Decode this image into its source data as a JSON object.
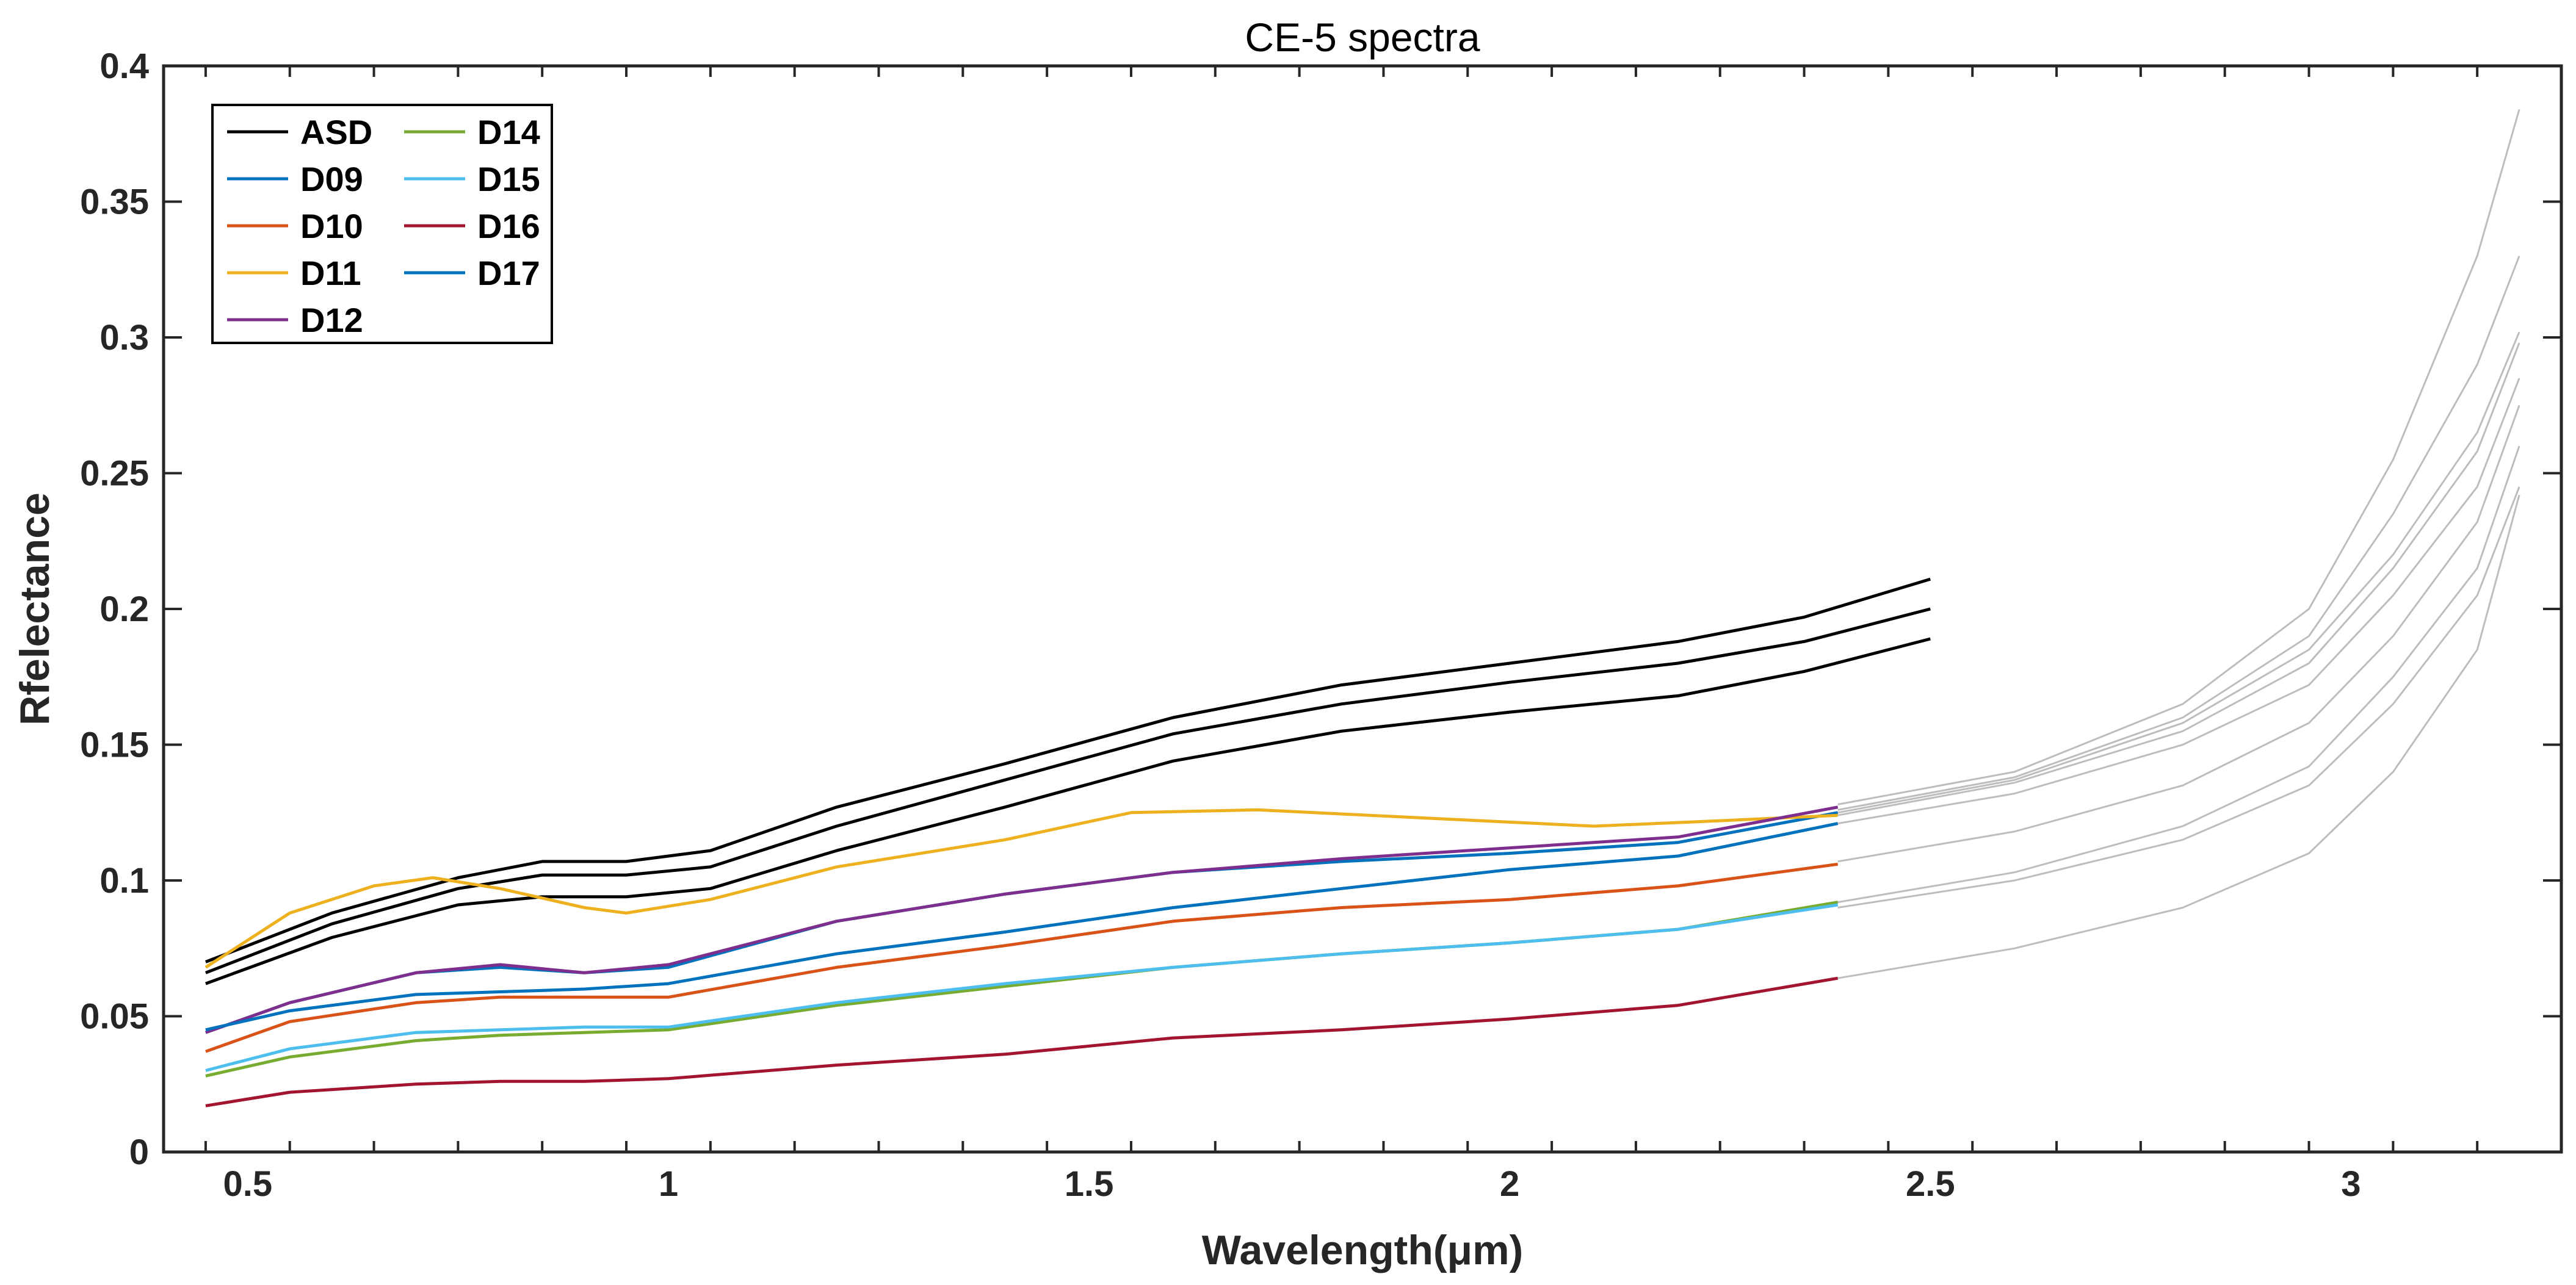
{
  "chart_data": {
    "type": "line",
    "title": "CE-5 spectra",
    "xlabel": "Wavelength(μm)",
    "ylabel": "Rfelectance",
    "xlim": [
      0.4,
      3.25
    ],
    "ylim": [
      0,
      0.4
    ],
    "xticks": [
      0.5,
      1,
      1.5,
      2,
      2.5,
      3
    ],
    "xtick_labels": [
      "0.5",
      "1",
      "1.5",
      "2",
      "2.5",
      "3"
    ],
    "yticks": [
      0,
      0.05,
      0.1,
      0.15,
      0.2,
      0.25,
      0.3,
      0.35,
      0.4
    ],
    "ytick_labels": [
      "0",
      "0.05",
      "0.1",
      "0.15",
      "0.2",
      "0.25",
      "0.3",
      "0.35",
      "0.4"
    ],
    "grid": false,
    "legend_position": "top-left",
    "series": [
      {
        "name": "ASD",
        "color": "#000000",
        "x": [
          0.45,
          0.6,
          0.75,
          0.85,
          0.95,
          1.05,
          1.2,
          1.4,
          1.6,
          1.8,
          2.0,
          2.2,
          2.35,
          2.5
        ],
        "y": [
          0.07,
          0.088,
          0.101,
          0.107,
          0.107,
          0.111,
          0.127,
          0.143,
          0.16,
          0.172,
          0.18,
          0.188,
          0.197,
          0.211
        ]
      },
      {
        "name": "",
        "color": "#000000",
        "x": [
          0.45,
          0.6,
          0.75,
          0.85,
          0.95,
          1.05,
          1.2,
          1.4,
          1.6,
          1.8,
          2.0,
          2.2,
          2.35,
          2.5
        ],
        "y": [
          0.066,
          0.084,
          0.097,
          0.102,
          0.102,
          0.105,
          0.12,
          0.137,
          0.154,
          0.165,
          0.173,
          0.18,
          0.188,
          0.2
        ]
      },
      {
        "name": "",
        "color": "#000000",
        "x": [
          0.45,
          0.6,
          0.75,
          0.85,
          0.95,
          1.05,
          1.2,
          1.4,
          1.6,
          1.8,
          2.0,
          2.2,
          2.35,
          2.5
        ],
        "y": [
          0.062,
          0.079,
          0.091,
          0.094,
          0.094,
          0.097,
          0.111,
          0.127,
          0.144,
          0.155,
          0.162,
          0.168,
          0.177,
          0.189
        ]
      },
      {
        "name": "D09",
        "color": "#0072BD",
        "x": [
          0.45,
          0.55,
          0.7,
          0.8,
          0.9,
          1.0,
          1.2,
          1.4,
          1.6,
          1.8,
          2.0,
          2.2,
          2.39
        ],
        "y": [
          0.044,
          0.055,
          0.066,
          0.068,
          0.066,
          0.068,
          0.085,
          0.095,
          0.103,
          0.107,
          0.11,
          0.114,
          0.125
        ]
      },
      {
        "name": "D10",
        "color": "#D95319",
        "x": [
          0.45,
          0.55,
          0.7,
          0.8,
          0.9,
          1.0,
          1.2,
          1.4,
          1.6,
          1.8,
          2.0,
          2.2,
          2.39
        ],
        "y": [
          0.037,
          0.048,
          0.055,
          0.057,
          0.057,
          0.057,
          0.068,
          0.076,
          0.085,
          0.09,
          0.093,
          0.098,
          0.106
        ]
      },
      {
        "name": "D11",
        "color": "#EDB120",
        "x": [
          0.45,
          0.55,
          0.65,
          0.72,
          0.8,
          0.9,
          0.95,
          1.05,
          1.2,
          1.4,
          1.55,
          1.7,
          1.9,
          2.1,
          2.25,
          2.39
        ],
        "y": [
          0.068,
          0.088,
          0.098,
          0.101,
          0.097,
          0.09,
          0.088,
          0.093,
          0.105,
          0.115,
          0.125,
          0.126,
          0.123,
          0.12,
          0.122,
          0.124
        ]
      },
      {
        "name": "D12",
        "color": "#7E2F8E",
        "x": [
          0.45,
          0.55,
          0.7,
          0.8,
          0.9,
          1.0,
          1.2,
          1.4,
          1.6,
          1.8,
          2.0,
          2.2,
          2.39
        ],
        "y": [
          0.044,
          0.055,
          0.066,
          0.069,
          0.066,
          0.069,
          0.085,
          0.095,
          0.103,
          0.108,
          0.112,
          0.116,
          0.127
        ]
      },
      {
        "name": "D14",
        "color": "#77AC30",
        "x": [
          0.45,
          0.55,
          0.7,
          0.8,
          0.9,
          1.0,
          1.2,
          1.4,
          1.6,
          1.8,
          2.0,
          2.2,
          2.39
        ],
        "y": [
          0.028,
          0.035,
          0.041,
          0.043,
          0.044,
          0.045,
          0.054,
          0.061,
          0.068,
          0.073,
          0.077,
          0.082,
          0.092
        ]
      },
      {
        "name": "D15",
        "color": "#4DBEEE",
        "x": [
          0.45,
          0.55,
          0.7,
          0.8,
          0.9,
          1.0,
          1.2,
          1.4,
          1.6,
          1.8,
          2.0,
          2.2,
          2.39
        ],
        "y": [
          0.03,
          0.038,
          0.044,
          0.045,
          0.046,
          0.046,
          0.055,
          0.062,
          0.068,
          0.073,
          0.077,
          0.082,
          0.091
        ]
      },
      {
        "name": "D16",
        "color": "#A2142F",
        "x": [
          0.45,
          0.55,
          0.7,
          0.8,
          0.9,
          1.0,
          1.2,
          1.4,
          1.6,
          1.8,
          2.0,
          2.2,
          2.39
        ],
        "y": [
          0.017,
          0.022,
          0.025,
          0.026,
          0.026,
          0.027,
          0.032,
          0.036,
          0.042,
          0.045,
          0.049,
          0.054,
          0.064
        ]
      },
      {
        "name": "D17",
        "color": "#0072BD",
        "x": [
          0.45,
          0.55,
          0.7,
          0.8,
          0.9,
          1.0,
          1.2,
          1.4,
          1.6,
          1.8,
          2.0,
          2.2,
          2.39
        ],
        "y": [
          0.045,
          0.052,
          0.058,
          0.059,
          0.06,
          0.062,
          0.073,
          0.081,
          0.09,
          0.097,
          0.104,
          0.109,
          0.121
        ]
      },
      {
        "name": "",
        "color": "#bdbdbd",
        "x": [
          2.39,
          2.6,
          2.8,
          2.95,
          3.05,
          3.15,
          3.2
        ],
        "y": [
          0.128,
          0.14,
          0.165,
          0.2,
          0.255,
          0.33,
          0.384
        ]
      },
      {
        "name": "",
        "color": "#bdbdbd",
        "x": [
          2.39,
          2.6,
          2.8,
          2.95,
          3.05,
          3.15,
          3.2
        ],
        "y": [
          0.126,
          0.138,
          0.16,
          0.19,
          0.235,
          0.29,
          0.33
        ]
      },
      {
        "name": "",
        "color": "#bdbdbd",
        "x": [
          2.39,
          2.6,
          2.8,
          2.95,
          3.05,
          3.15,
          3.2
        ],
        "y": [
          0.125,
          0.137,
          0.158,
          0.185,
          0.22,
          0.265,
          0.302
        ]
      },
      {
        "name": "",
        "color": "#bdbdbd",
        "x": [
          2.39,
          2.6,
          2.8,
          2.95,
          3.05,
          3.15,
          3.2
        ],
        "y": [
          0.124,
          0.136,
          0.155,
          0.18,
          0.215,
          0.258,
          0.298
        ]
      },
      {
        "name": "",
        "color": "#bdbdbd",
        "x": [
          2.39,
          2.6,
          2.8,
          2.95,
          3.05,
          3.15,
          3.2
        ],
        "y": [
          0.121,
          0.132,
          0.15,
          0.172,
          0.205,
          0.245,
          0.285
        ]
      },
      {
        "name": "",
        "color": "#bdbdbd",
        "x": [
          2.39,
          2.6,
          2.8,
          2.95,
          3.05,
          3.15,
          3.2
        ],
        "y": [
          0.107,
          0.118,
          0.135,
          0.158,
          0.19,
          0.232,
          0.275
        ]
      },
      {
        "name": "",
        "color": "#bdbdbd",
        "x": [
          2.39,
          2.6,
          2.8,
          2.95,
          3.05,
          3.15,
          3.2
        ],
        "y": [
          0.092,
          0.103,
          0.12,
          0.142,
          0.175,
          0.215,
          0.26
        ]
      },
      {
        "name": "",
        "color": "#bdbdbd",
        "x": [
          2.39,
          2.6,
          2.8,
          2.95,
          3.05,
          3.15,
          3.2
        ],
        "y": [
          0.09,
          0.1,
          0.115,
          0.135,
          0.165,
          0.205,
          0.245
        ]
      },
      {
        "name": "",
        "color": "#bdbdbd",
        "x": [
          2.39,
          2.6,
          2.8,
          2.95,
          3.05,
          3.15,
          3.2
        ],
        "y": [
          0.064,
          0.075,
          0.09,
          0.11,
          0.14,
          0.185,
          0.242
        ]
      }
    ],
    "legend": [
      {
        "label": "ASD",
        "color": "#000000"
      },
      {
        "label": "D09",
        "color": "#0072BD"
      },
      {
        "label": "D10",
        "color": "#D95319"
      },
      {
        "label": "D11",
        "color": "#EDB120"
      },
      {
        "label": "D12",
        "color": "#7E2F8E"
      },
      {
        "label": "D14",
        "color": "#77AC30"
      },
      {
        "label": "D15",
        "color": "#4DBEEE"
      },
      {
        "label": "D16",
        "color": "#A2142F"
      },
      {
        "label": "D17",
        "color": "#0072BD"
      }
    ]
  }
}
